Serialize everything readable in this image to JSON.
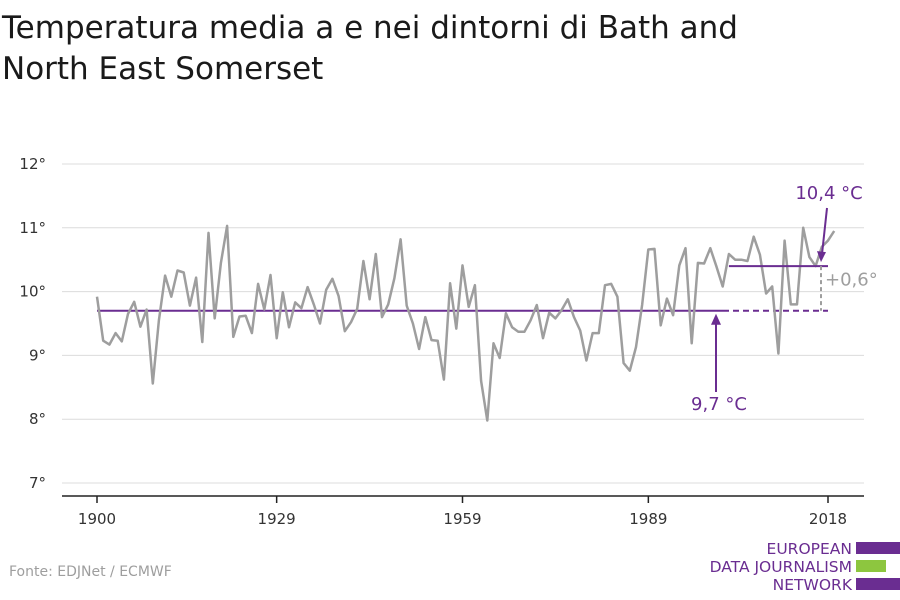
{
  "colors": {
    "series": "#9e9e9e",
    "accent": "#6a2d91",
    "logo_green": "#8dc63f",
    "grid": "#dcdcdc"
  },
  "chart_data": {
    "type": "line",
    "title": "Temperatura media a e nei dintorni di Bath and North East Somerset",
    "title_lines": [
      "Temperatura media a e nei dintorni di Bath and",
      "North East Somerset"
    ],
    "x_ticks": [
      1900,
      1929,
      1959,
      1989,
      2018
    ],
    "y_ticks": [
      7,
      8,
      9,
      10,
      11,
      12
    ],
    "y_tick_labels": [
      "7°",
      "8°",
      "9°",
      "10°",
      "11°",
      "12°"
    ],
    "xlim": [
      1900,
      2019
    ],
    "ylim": [
      7,
      12
    ],
    "grid": "horizontal",
    "unit": "°C",
    "series": [
      {
        "x": [
          1900,
          1901,
          1902,
          1903,
          1904,
          1905,
          1906,
          1907,
          1908,
          1909,
          1910,
          1911,
          1912,
          1913,
          1914,
          1915,
          1916,
          1917,
          1918,
          1919,
          1920,
          1921,
          1922,
          1923,
          1924,
          1925,
          1926,
          1927,
          1928,
          1929,
          1930,
          1931,
          1932,
          1933,
          1934,
          1935,
          1936,
          1937,
          1938,
          1939,
          1940,
          1941,
          1942,
          1943,
          1944,
          1945,
          1946,
          1947,
          1948,
          1949,
          1950,
          1951,
          1952,
          1953,
          1954,
          1955,
          1956,
          1957,
          1958,
          1959,
          1960,
          1961,
          1962,
          1963,
          1964,
          1965,
          1966,
          1967,
          1968,
          1969,
          1970,
          1971,
          1972,
          1973,
          1974,
          1975,
          1976,
          1977,
          1978,
          1979,
          1980,
          1981,
          1982,
          1983,
          1984,
          1985,
          1986,
          1987,
          1988,
          1989,
          1990,
          1991,
          1992,
          1993,
          1994,
          1995,
          1996,
          1997,
          1998,
          1999,
          2000,
          2001,
          2002,
          2003,
          2004,
          2005,
          2006,
          2007,
          2008,
          2009,
          2010,
          2011,
          2012,
          2013,
          2014,
          2015,
          2016,
          2017,
          2018,
          2019
        ],
        "values": [
          9.92,
          9.23,
          9.17,
          9.35,
          9.22,
          9.65,
          9.84,
          9.45,
          9.72,
          8.56,
          9.55,
          10.25,
          9.92,
          10.33,
          10.3,
          9.78,
          10.22,
          9.21,
          10.92,
          9.58,
          10.45,
          11.03,
          9.29,
          9.61,
          9.62,
          9.35,
          10.12,
          9.72,
          10.26,
          9.27,
          9.99,
          9.44,
          9.83,
          9.74,
          10.07,
          9.8,
          9.5,
          10.03,
          10.2,
          9.93,
          9.38,
          9.52,
          9.73,
          10.48,
          9.88,
          10.59,
          9.6,
          9.8,
          10.21,
          10.82,
          9.78,
          9.5,
          9.1,
          9.6,
          9.24,
          9.23,
          8.62,
          10.13,
          9.42,
          10.41,
          9.76,
          10.1,
          8.6,
          7.98,
          9.19,
          8.96,
          9.66,
          9.44,
          9.37,
          9.37,
          9.55,
          9.79,
          9.27,
          9.67,
          9.58,
          9.71,
          9.88,
          9.6,
          9.39,
          8.92,
          9.35,
          9.35,
          10.1,
          10.12,
          9.92,
          8.88,
          8.76,
          9.13,
          9.8,
          10.66,
          10.67,
          9.47,
          9.89,
          9.63,
          10.41,
          10.68,
          9.19,
          10.45,
          10.44,
          10.68,
          10.39,
          10.08,
          10.59,
          10.5,
          10.5,
          10.48,
          10.86,
          10.58,
          9.97,
          10.08,
          9.03,
          10.8,
          9.8,
          9.8,
          11.0,
          10.54,
          10.4,
          10.7,
          10.8,
          10.95
        ]
      }
    ],
    "baseline": {
      "value": 9.7,
      "label": "9,7 °C",
      "from": 1900,
      "to": 2018
    },
    "recent": {
      "value": 10.4,
      "label": "10,4 °C",
      "from": 2002,
      "to": 2018
    },
    "difference": {
      "label": "+0,6°"
    }
  },
  "source": "Fonte: EDJNet / ECMWF",
  "logo": {
    "line1": "EUROPEAN",
    "line2": "DATA JOURNALISM",
    "line3": "NETWORK"
  }
}
